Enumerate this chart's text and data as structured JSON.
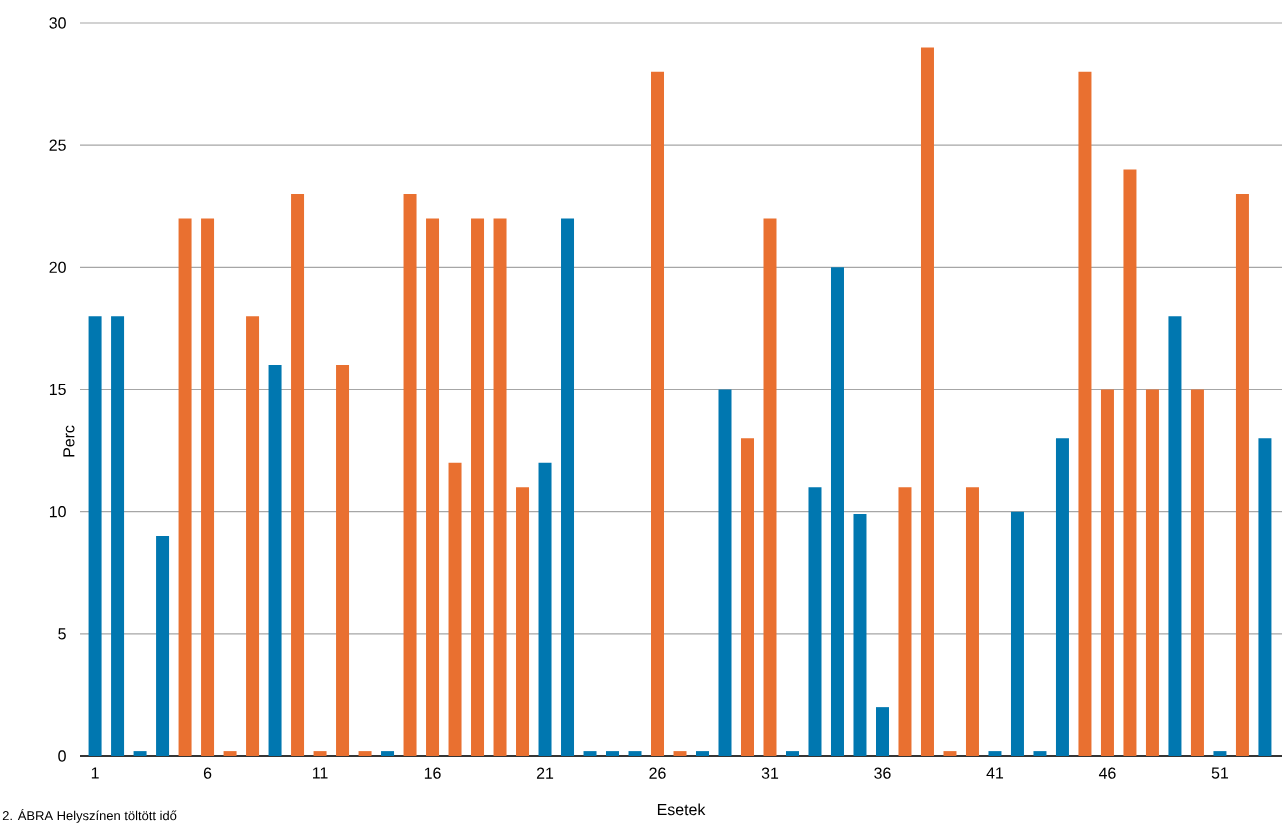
{
  "chart_data": {
    "type": "bar",
    "xlabel": "Esetek",
    "ylabel": "Perc",
    "categories": [
      "1",
      null,
      null,
      null,
      null,
      "6",
      null,
      null,
      null,
      null,
      "11",
      null,
      null,
      null,
      null,
      "16",
      null,
      null,
      null,
      null,
      "21",
      null,
      null,
      null,
      null,
      "26",
      null,
      null,
      null,
      null,
      "31",
      null,
      null,
      null,
      null,
      "36",
      null,
      null,
      null,
      null,
      "41",
      null,
      null,
      null,
      null,
      "46",
      null,
      null,
      null,
      null,
      "51",
      null,
      null
    ],
    "values": [
      18,
      18,
      0.2,
      9,
      22,
      22,
      0.2,
      18,
      16,
      23,
      0.2,
      16,
      0.2,
      0.2,
      23,
      22,
      12,
      22,
      22,
      11,
      12,
      22,
      0.2,
      0.2,
      0.2,
      28,
      0.2,
      0.2,
      15,
      13,
      22,
      0.2,
      11,
      20,
      9.9,
      2,
      11,
      29,
      0.2,
      11,
      0.2,
      10,
      0.2,
      13,
      28,
      15,
      24,
      15,
      18,
      15,
      0.2,
      23,
      13
    ],
    "colors": [
      "#0077b0",
      "#0077b0",
      "#0077b0",
      "#0077b0",
      "#e97030",
      "#e97030",
      "#e97030",
      "#e97030",
      "#0077b0",
      "#e97030",
      "#e97030",
      "#e97030",
      "#e97030",
      "#0077b0",
      "#e97030",
      "#e97030",
      "#e97030",
      "#e97030",
      "#e97030",
      "#e97030",
      "#0077b0",
      "#0077b0",
      "#0077b0",
      "#0077b0",
      "#0077b0",
      "#e97030",
      "#e97030",
      "#0077b0",
      "#0077b0",
      "#e97030",
      "#e97030",
      "#0077b0",
      "#0077b0",
      "#0077b0",
      "#0077b0",
      "#0077b0",
      "#e97030",
      "#e97030",
      "#e97030",
      "#e97030",
      "#0077b0",
      "#0077b0",
      "#0077b0",
      "#0077b0",
      "#e97030",
      "#e97030",
      "#e97030",
      "#e97030",
      "#0077b0",
      "#e97030",
      "#0077b0",
      "#e97030",
      "#0077b0"
    ],
    "ylim": [
      0,
      30
    ],
    "yticks": [
      0,
      5,
      10,
      15,
      20,
      25,
      30
    ],
    "grid": "y",
    "annotations": [
      "2. ÁBRA Helyszínen töltött idő"
    ]
  }
}
